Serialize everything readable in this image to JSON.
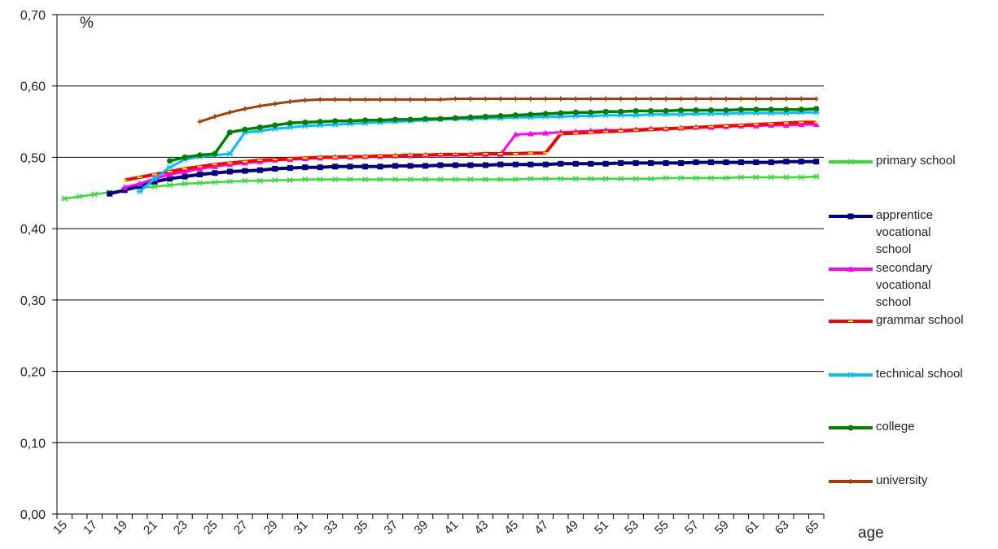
{
  "chart_data": {
    "type": "line",
    "title": "",
    "ylabel": "%",
    "xlabel": "age",
    "x_min": 15,
    "x_max": 65,
    "ylim": [
      0,
      0.7
    ],
    "y_ticks": [
      "0,00",
      "0,10",
      "0,20",
      "0,30",
      "0,40",
      "0,50",
      "0,60",
      "0,70"
    ],
    "x_tick_labels": [
      "15",
      "17",
      "19",
      "21",
      "23",
      "25",
      "27",
      "29",
      "31",
      "33",
      "35",
      "37",
      "39",
      "41",
      "43",
      "45",
      "47",
      "49",
      "51",
      "53",
      "55",
      "57",
      "59",
      "61",
      "63",
      "65"
    ],
    "grid": "horizontal",
    "legend_position": "right",
    "series": [
      {
        "name": "primary school",
        "color": "#33dd33",
        "marker": "star",
        "x_start": 15,
        "values": [
          0.442,
          0.445,
          0.448,
          0.451,
          0.454,
          0.457,
          0.459,
          0.461,
          0.463,
          0.464,
          0.465,
          0.466,
          0.467,
          0.467,
          0.468,
          0.468,
          0.469,
          0.469,
          0.469,
          0.469,
          0.469,
          0.469,
          0.469,
          0.469,
          0.469,
          0.469,
          0.469,
          0.469,
          0.469,
          0.469,
          0.469,
          0.47,
          0.47,
          0.47,
          0.47,
          0.47,
          0.47,
          0.47,
          0.47,
          0.47,
          0.471,
          0.471,
          0.471,
          0.471,
          0.471,
          0.472,
          0.472,
          0.472,
          0.472,
          0.472,
          0.473
        ]
      },
      {
        "name": "apprentice vocational school",
        "color": "#000080",
        "marker": "square",
        "x_start": 18,
        "values": [
          0.449,
          0.454,
          0.46,
          0.466,
          0.47,
          0.473,
          0.476,
          0.478,
          0.48,
          0.481,
          0.482,
          0.484,
          0.485,
          0.486,
          0.486,
          0.487,
          0.487,
          0.487,
          0.487,
          0.488,
          0.488,
          0.488,
          0.489,
          0.489,
          0.489,
          0.489,
          0.49,
          0.49,
          0.49,
          0.49,
          0.491,
          0.491,
          0.491,
          0.491,
          0.492,
          0.492,
          0.492,
          0.492,
          0.492,
          0.493,
          0.493,
          0.493,
          0.493,
          0.493,
          0.493,
          0.494,
          0.494,
          0.494
        ]
      },
      {
        "name": "secondary vocational school",
        "color": "#ff00ff",
        "marker": "triangle",
        "x_start": 19,
        "values": [
          0.458,
          0.463,
          0.47,
          0.476,
          0.48,
          0.484,
          0.487,
          0.49,
          0.492,
          0.494,
          0.496,
          0.497,
          0.498,
          0.499,
          0.5,
          0.5,
          0.501,
          0.501,
          0.502,
          0.502,
          0.503,
          0.503,
          0.503,
          0.504,
          0.504,
          0.504,
          0.532,
          0.533,
          0.534,
          0.535,
          0.536,
          0.537,
          0.538,
          0.538,
          0.539,
          0.54,
          0.54,
          0.541,
          0.542,
          0.542,
          0.543,
          0.544,
          0.544,
          0.545,
          0.545,
          0.546,
          0.546
        ]
      },
      {
        "name": "grammar school",
        "color": "#ff0000",
        "marker": "dash",
        "x_start": 19,
        "values": [
          0.468,
          0.472,
          0.476,
          0.48,
          0.484,
          0.487,
          0.49,
          0.492,
          0.494,
          0.496,
          0.497,
          0.498,
          0.499,
          0.5,
          0.5,
          0.501,
          0.501,
          0.502,
          0.502,
          0.503,
          0.503,
          0.504,
          0.504,
          0.504,
          0.505,
          0.505,
          0.505,
          0.506,
          0.506,
          0.533,
          0.534,
          0.535,
          0.536,
          0.537,
          0.538,
          0.539,
          0.54,
          0.541,
          0.542,
          0.543,
          0.544,
          0.545,
          0.546,
          0.547,
          0.548,
          0.549,
          0.549
        ]
      },
      {
        "name": "technical school",
        "color": "#00bfff",
        "marker": "star",
        "x_start": 20,
        "values": [
          0.452,
          0.47,
          0.486,
          0.497,
          0.501,
          0.503,
          0.505,
          0.535,
          0.537,
          0.54,
          0.542,
          0.544,
          0.545,
          0.546,
          0.547,
          0.548,
          0.549,
          0.55,
          0.551,
          0.552,
          0.553,
          0.554,
          0.554,
          0.555,
          0.555,
          0.556,
          0.556,
          0.557,
          0.557,
          0.558,
          0.558,
          0.559,
          0.559,
          0.559,
          0.56,
          0.56,
          0.56,
          0.561,
          0.561,
          0.561,
          0.562,
          0.562,
          0.562,
          0.562,
          0.563,
          0.563
        ]
      },
      {
        "name": "college",
        "color": "#008000",
        "marker": "circle",
        "x_start": 22,
        "values": [
          0.495,
          0.5,
          0.503,
          0.505,
          0.535,
          0.539,
          0.542,
          0.545,
          0.548,
          0.549,
          0.55,
          0.551,
          0.551,
          0.552,
          0.552,
          0.553,
          0.553,
          0.554,
          0.554,
          0.555,
          0.556,
          0.557,
          0.558,
          0.559,
          0.56,
          0.561,
          0.562,
          0.563,
          0.563,
          0.564,
          0.564,
          0.565,
          0.565,
          0.565,
          0.566,
          0.566,
          0.566,
          0.566,
          0.567,
          0.567,
          0.567,
          0.567,
          0.567,
          0.568
        ]
      },
      {
        "name": "university",
        "color": "#a0410d",
        "marker": "plus",
        "x_start": 24,
        "values": [
          0.55,
          0.557,
          0.563,
          0.568,
          0.572,
          0.575,
          0.578,
          0.58,
          0.581,
          0.581,
          0.581,
          0.581,
          0.581,
          0.581,
          0.581,
          0.581,
          0.581,
          0.582,
          0.582,
          0.582,
          0.582,
          0.582,
          0.582,
          0.582,
          0.582,
          0.582,
          0.582,
          0.582,
          0.582,
          0.582,
          0.582,
          0.582,
          0.582,
          0.582,
          0.582,
          0.582,
          0.582,
          0.582,
          0.582,
          0.582,
          0.582,
          0.582
        ]
      }
    ],
    "legend_labels": [
      [
        "primary school"
      ],
      [
        "apprentice",
        "vocational",
        "school"
      ],
      [
        "secondary",
        "vocational",
        "school"
      ],
      [
        "grammar school"
      ],
      [
        "technical school"
      ],
      [
        "college"
      ],
      [
        "university"
      ]
    ]
  }
}
